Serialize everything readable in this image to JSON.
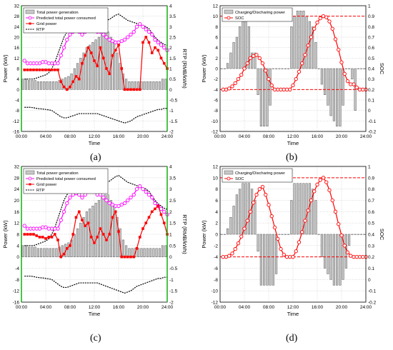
{
  "captions": [
    "(a)",
    "(b)",
    "(c)",
    "(d)"
  ],
  "chart_data": [
    {
      "panel": "a",
      "type": "bar+line",
      "xlabel": "Time",
      "ylabel": "Power (kW)",
      "y2label": "RTP (RMB/kWh)",
      "xticks": [
        "00:00",
        "04:00",
        "08:00",
        "12:00",
        "16:00",
        "20:00",
        "24:00"
      ],
      "xlim": [
        0,
        24
      ],
      "ylim": [
        -16,
        32
      ],
      "yticks": [
        32,
        28,
        24,
        20,
        16,
        12,
        8,
        4,
        0,
        -4,
        -8,
        -12,
        -16
      ],
      "y2lim": [
        -2,
        4
      ],
      "y2ticks": [
        4,
        3.5,
        3,
        2.5,
        2,
        1.5,
        1,
        0.5,
        0,
        -0.5,
        -1,
        -1.5,
        -2
      ],
      "legend": [
        "Total power generation",
        "Predicted total power consumed",
        "Grid power",
        "RTP"
      ],
      "colors": {
        "bars": "#c8c8c8",
        "consumed": "#ff00ff",
        "grid": "#ff0000",
        "rtp": "#000000",
        "right_axis": "#00aa00"
      },
      "x": [
        0.5,
        1,
        1.5,
        2,
        2.5,
        3,
        3.5,
        4,
        4.5,
        5,
        5.5,
        6,
        6.5,
        7,
        7.5,
        8,
        8.5,
        9,
        9.5,
        10,
        10.5,
        11,
        11.5,
        12,
        12.5,
        13,
        13.5,
        14,
        14.5,
        15,
        15.5,
        16,
        16.5,
        17,
        17.5,
        18,
        18.5,
        19,
        19.5,
        20,
        20.5,
        21,
        21.5,
        22,
        22.5,
        23,
        23.5,
        24
      ],
      "generation": [
        4,
        4,
        3.5,
        3.5,
        3.5,
        3,
        3,
        3,
        3,
        3,
        3,
        3,
        3.5,
        4,
        4.5,
        5,
        6,
        8,
        10,
        12,
        14,
        16,
        17,
        18,
        19,
        20,
        21,
        22,
        22,
        20,
        18,
        14,
        10,
        6,
        4,
        3,
        3,
        3,
        3,
        3,
        3,
        3,
        3,
        3,
        3,
        3,
        4,
        4
      ],
      "consumed": [
        11,
        10,
        10,
        10,
        10,
        10,
        10.5,
        10.5,
        10,
        10,
        10,
        10,
        13,
        16,
        19,
        21,
        22,
        22.5,
        22,
        21,
        22,
        23,
        23.5,
        23,
        22,
        22,
        21,
        20,
        19,
        18.5,
        18,
        18,
        18.5,
        19,
        20,
        21,
        22,
        24,
        25,
        24,
        23,
        22,
        21,
        19,
        18,
        17,
        16,
        15
      ],
      "grid": [
        7.5,
        7.5,
        7.5,
        7.5,
        7.5,
        7.5,
        7.5,
        7.5,
        7.5,
        7.5,
        7.5,
        7.5,
        3,
        1,
        0,
        1,
        3,
        5,
        4,
        10,
        13,
        16,
        14,
        11,
        9,
        16,
        12,
        8,
        6,
        13,
        15,
        17,
        8,
        0,
        0,
        0,
        0,
        0,
        0,
        18,
        20,
        18,
        14,
        16,
        15,
        12,
        10,
        8
      ],
      "rtp": [
        -0.85,
        -0.85,
        -0.85,
        -0.87,
        -0.9,
        -0.92,
        -0.93,
        -0.95,
        -0.97,
        -1.0,
        -1.1,
        -1.2,
        -1.3,
        -1.35,
        -1.35,
        -1.3,
        -1.25,
        -1.2,
        -1.15,
        -1.15,
        -1.15,
        -1.15,
        -1.15,
        -1.15,
        -1.15,
        -1.2,
        -1.25,
        -1.3,
        -1.35,
        -1.4,
        -1.45,
        -1.5,
        -1.55,
        -1.6,
        -1.55,
        -1.5,
        -1.4,
        -1.3,
        -1.25,
        -1.2,
        -1.15,
        -1.1,
        -1.05,
        -1.0,
        -0.95,
        -0.95,
        -0.9,
        -0.9
      ],
      "rtp_upper": [
        0.5,
        0.5,
        0.5,
        0.5,
        0.55,
        0.6,
        0.65,
        0.7,
        0.8,
        1.0,
        1.3,
        1.7,
        2.1,
        2.5,
        2.75,
        2.9,
        2.95,
        3.0,
        3.0,
        3.0,
        3.0,
        3.0,
        3.05,
        3.1,
        3.15,
        3.2,
        3.25,
        3.3,
        3.35,
        3.45,
        3.55,
        3.6,
        3.5,
        3.4,
        3.3,
        3.25,
        3.2,
        3.15,
        3.1,
        3.05,
        3.0,
        2.9,
        2.7,
        2.5,
        2.35,
        2.25,
        2.15,
        2.1
      ]
    },
    {
      "panel": "b",
      "type": "bar+line",
      "xlabel": "Time",
      "ylabel": "Power (kW)",
      "y2label": "SOC",
      "xticks": [
        "00:00",
        "04:00",
        "08:00",
        "12:00",
        "16:00",
        "20:00",
        "24:00"
      ],
      "xlim": [
        0,
        24
      ],
      "ylim": [
        -12,
        12
      ],
      "yticks": [
        12,
        10,
        8,
        6,
        4,
        2,
        0,
        -2,
        -4,
        -6,
        -8,
        -10,
        -12
      ],
      "y2lim": [
        -0.2,
        1.0
      ],
      "y2ticks": [
        1,
        0.9,
        0.8,
        0.7,
        0.6,
        0.5,
        0.4,
        0.3,
        0.2,
        0.1,
        0,
        -0.1,
        -0.2
      ],
      "soc_limits": [
        0.9,
        0.2
      ],
      "legend": [
        "Charging/Discharing power",
        "SOC"
      ],
      "colors": {
        "bars": "#c8c8c8",
        "soc": "#ff0000",
        "limits": "#ff0000"
      },
      "x": [
        0.5,
        1,
        1.5,
        2,
        2.5,
        3,
        3.5,
        4,
        4.5,
        5,
        5.5,
        6,
        6.5,
        7,
        7.5,
        8,
        8.5,
        9,
        9.5,
        10,
        10.5,
        11,
        11.5,
        12,
        12.5,
        13,
        13.5,
        14,
        14.5,
        15,
        15.5,
        16,
        16.5,
        17,
        17.5,
        18,
        18.5,
        19,
        19.5,
        20,
        20.5,
        21,
        21.5,
        22,
        22.5,
        23,
        23.5,
        24
      ],
      "power": [
        0,
        0,
        1,
        3,
        5,
        6,
        8,
        9,
        9,
        8,
        3,
        3,
        -5,
        -11,
        -11,
        -11,
        -7,
        0,
        0,
        0,
        0,
        0,
        0,
        8,
        10,
        11,
        11,
        11,
        10,
        9,
        8,
        5,
        0,
        -3,
        -5,
        -7,
        -9,
        -10,
        -11,
        -11,
        -7,
        0,
        0,
        -2,
        -8,
        0,
        0,
        0
      ],
      "soc": [
        0.2,
        0.2,
        0.21,
        0.23,
        0.26,
        0.3,
        0.34,
        0.4,
        0.45,
        0.5,
        0.52,
        0.53,
        0.5,
        0.45,
        0.38,
        0.3,
        0.24,
        0.2,
        0.2,
        0.2,
        0.2,
        0.2,
        0.2,
        0.24,
        0.3,
        0.37,
        0.45,
        0.53,
        0.62,
        0.7,
        0.78,
        0.84,
        0.88,
        0.9,
        0.89,
        0.85,
        0.78,
        0.68,
        0.58,
        0.46,
        0.35,
        0.28,
        0.25,
        0.25,
        0.22,
        0.2,
        0.2,
        0.2
      ]
    },
    {
      "panel": "c",
      "type": "bar+line",
      "xlabel": "Time",
      "ylabel": "Power (kW)",
      "y2label": "RTP (RMB/kWh)",
      "xticks": [
        "00:00",
        "04:00",
        "08:00",
        "12:00",
        "16:00",
        "20:00",
        "24:00"
      ],
      "xlim": [
        0,
        24
      ],
      "ylim": [
        -16,
        32
      ],
      "yticks": [
        32,
        28,
        24,
        20,
        16,
        12,
        8,
        4,
        0,
        -4,
        -8,
        -12,
        -16
      ],
      "y2lim": [
        -2,
        4
      ],
      "y2ticks": [
        4,
        3.5,
        3,
        2.5,
        2,
        1.5,
        1,
        0.5,
        0,
        -0.5,
        -1,
        -1.5,
        -2
      ],
      "legend": [
        "Total power generation",
        "Predicted total power consumed",
        "Grid power",
        "RTP"
      ],
      "colors": {
        "bars": "#c8c8c8",
        "consumed": "#ff00ff",
        "grid": "#ff0000",
        "rtp": "#000000",
        "right_axis": "#00aa00"
      },
      "x": [
        0.5,
        1,
        1.5,
        2,
        2.5,
        3,
        3.5,
        4,
        4.5,
        5,
        5.5,
        6,
        6.5,
        7,
        7.5,
        8,
        8.5,
        9,
        9.5,
        10,
        10.5,
        11,
        11.5,
        12,
        12.5,
        13,
        13.5,
        14,
        14.5,
        15,
        15.5,
        16,
        16.5,
        17,
        17.5,
        18,
        18.5,
        19,
        19.5,
        20,
        20.5,
        21,
        21.5,
        22,
        22.5,
        23,
        23.5,
        24
      ],
      "generation": [
        4,
        4,
        3.5,
        3.5,
        3.5,
        3,
        3,
        3,
        3,
        3,
        3,
        3,
        3.5,
        4,
        4.5,
        5,
        6,
        8,
        10,
        12,
        14,
        16,
        17,
        18,
        19,
        20,
        21,
        22,
        22,
        20,
        18,
        14,
        10,
        6,
        4,
        3,
        3,
        3,
        3,
        3,
        3,
        3,
        3,
        3,
        3,
        3,
        4,
        4
      ],
      "consumed": [
        11,
        10,
        10,
        10,
        10,
        10,
        10.5,
        10.5,
        10,
        10,
        10,
        10,
        13,
        16,
        19,
        21,
        22,
        22.5,
        22,
        21,
        22,
        23,
        23.5,
        23,
        22,
        22,
        21,
        20,
        19,
        18.5,
        18,
        18,
        18.5,
        19,
        20,
        21,
        22,
        24,
        25,
        24,
        23,
        22,
        21,
        19,
        18,
        17,
        16,
        15
      ],
      "grid": [
        8,
        8,
        8,
        8,
        7.5,
        7,
        7,
        6.5,
        7,
        7,
        8,
        6,
        0,
        1,
        3,
        4,
        8,
        14,
        16,
        13,
        11,
        12,
        7,
        5,
        7,
        10,
        8,
        6,
        8,
        14,
        16,
        9,
        0,
        0,
        0,
        0,
        0,
        3,
        7,
        10,
        12,
        14,
        16,
        17,
        18,
        15,
        12,
        8
      ],
      "rtp": [
        -0.85,
        -0.85,
        -0.85,
        -0.87,
        -0.9,
        -0.92,
        -0.93,
        -0.95,
        -0.97,
        -1.0,
        -1.1,
        -1.2,
        -1.3,
        -1.35,
        -1.35,
        -1.3,
        -1.25,
        -1.2,
        -1.15,
        -1.15,
        -1.15,
        -1.15,
        -1.15,
        -1.15,
        -1.15,
        -1.2,
        -1.25,
        -1.3,
        -1.35,
        -1.4,
        -1.45,
        -1.5,
        -1.55,
        -1.6,
        -1.55,
        -1.5,
        -1.4,
        -1.3,
        -1.25,
        -1.2,
        -1.15,
        -1.1,
        -1.05,
        -1.0,
        -0.95,
        -0.95,
        -0.9,
        -0.9
      ],
      "rtp_upper": [
        0.5,
        0.5,
        0.5,
        0.5,
        0.55,
        0.6,
        0.65,
        0.7,
        0.8,
        1.0,
        1.3,
        1.7,
        2.1,
        2.5,
        2.75,
        2.9,
        2.95,
        3.0,
        3.0,
        3.0,
        3.0,
        3.0,
        3.05,
        3.1,
        3.15,
        3.2,
        3.25,
        3.3,
        3.35,
        3.45,
        3.55,
        3.6,
        3.5,
        3.4,
        3.3,
        3.25,
        3.2,
        3.15,
        3.1,
        3.05,
        3.0,
        2.9,
        2.7,
        2.5,
        2.35,
        2.25,
        2.15,
        2.1
      ]
    },
    {
      "panel": "d",
      "type": "bar+line",
      "xlabel": "Time",
      "ylabel": "Power (kW)",
      "y2label": "SOC",
      "xticks": [
        "00:00",
        "04:00",
        "08:00",
        "12:00",
        "16:00",
        "20:00",
        "24:00"
      ],
      "xlim": [
        0,
        24
      ],
      "ylim": [
        -12,
        12
      ],
      "yticks": [
        12,
        10,
        8,
        6,
        4,
        2,
        0,
        -2,
        -4,
        -6,
        -8,
        -10,
        -12
      ],
      "y2lim": [
        -0.2,
        1.0
      ],
      "y2ticks": [
        1,
        0.9,
        0.8,
        0.7,
        0.6,
        0.5,
        0.4,
        0.3,
        0.2,
        0.1,
        0,
        -0.1,
        -0.2
      ],
      "soc_limits": [
        0.9,
        0.2
      ],
      "legend": [
        "Charging/Discharing power",
        "SOC"
      ],
      "colors": {
        "bars": "#c8c8c8",
        "soc": "#ff0000",
        "limits": "#ff0000"
      },
      "x": [
        0.5,
        1,
        1.5,
        2,
        2.5,
        3,
        3.5,
        4,
        4.5,
        5,
        5.5,
        6,
        6.5,
        7,
        7.5,
        8,
        8.5,
        9,
        9.5,
        10,
        10.5,
        11,
        11.5,
        12,
        12.5,
        13,
        13.5,
        14,
        14.5,
        15,
        15.5,
        16,
        16.5,
        17,
        17.5,
        18,
        18.5,
        19,
        19.5,
        20,
        20.5,
        21,
        21.5,
        22,
        22.5,
        23,
        23.5,
        24
      ],
      "power": [
        0,
        0,
        1,
        3,
        5,
        7,
        8,
        9,
        9,
        9,
        8,
        6,
        -3,
        -9,
        -9,
        -9,
        -9,
        -9,
        -7,
        0,
        0,
        0,
        0,
        6,
        9,
        9,
        9,
        9,
        9,
        9,
        8,
        6,
        0,
        -4,
        -6,
        -7,
        -8,
        -9,
        -9,
        -9,
        -8,
        -6,
        -2,
        0,
        0,
        0,
        0,
        0
      ],
      "soc": [
        0.2,
        0.2,
        0.21,
        0.23,
        0.27,
        0.32,
        0.38,
        0.45,
        0.52,
        0.6,
        0.68,
        0.75,
        0.8,
        0.82,
        0.75,
        0.66,
        0.56,
        0.46,
        0.36,
        0.27,
        0.22,
        0.2,
        0.2,
        0.2,
        0.25,
        0.33,
        0.42,
        0.52,
        0.61,
        0.7,
        0.78,
        0.84,
        0.88,
        0.9,
        0.86,
        0.79,
        0.7,
        0.6,
        0.49,
        0.39,
        0.3,
        0.24,
        0.21,
        0.2,
        0.2,
        0.2,
        0.2,
        0.2
      ]
    }
  ]
}
